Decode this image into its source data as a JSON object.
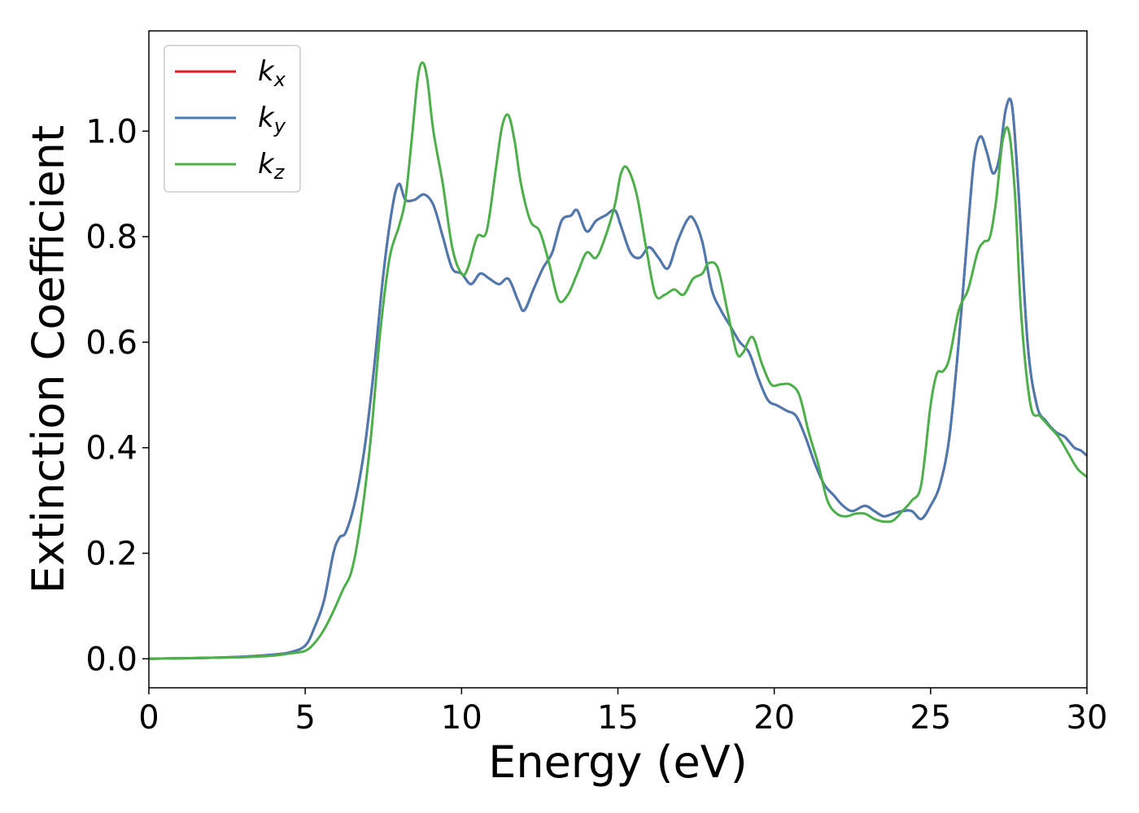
{
  "chart_data": {
    "type": "line",
    "xlabel": "Energy (eV)",
    "ylabel": "Extinction Coefficient",
    "xlim": [
      0,
      30
    ],
    "ylim": [
      -0.055,
      1.19
    ],
    "xticks": [
      0,
      5,
      10,
      15,
      20,
      25,
      30
    ],
    "yticks": [
      0.0,
      0.2,
      0.4,
      0.6,
      0.8,
      1.0
    ],
    "xtick_labels": [
      "0",
      "5",
      "10",
      "15",
      "20",
      "25",
      "30"
    ],
    "ytick_labels": [
      "0.0",
      "0.2",
      "0.4",
      "0.6",
      "0.8",
      "1.0"
    ],
    "grid": false,
    "legend_position": "top-left",
    "series": [
      {
        "name": "k",
        "subscript": "x",
        "color": "#e41a1c",
        "x": [
          0,
          1,
          2,
          3,
          4,
          4.5,
          5,
          5.3,
          5.6,
          5.9,
          6.1,
          6.3,
          6.6,
          6.9,
          7.2,
          7.5,
          7.8,
          8.0,
          8.2,
          8.5,
          8.8,
          9.1,
          9.4,
          9.7,
          10.0,
          10.3,
          10.6,
          10.9,
          11.2,
          11.5,
          11.8,
          12.0,
          12.3,
          12.6,
          12.9,
          13.2,
          13.5,
          13.7,
          14.0,
          14.3,
          14.6,
          14.9,
          15.1,
          15.4,
          15.7,
          16.0,
          16.3,
          16.6,
          16.9,
          17.2,
          17.4,
          17.7,
          18.0,
          18.3,
          18.6,
          18.9,
          19.2,
          19.5,
          19.8,
          20.1,
          20.4,
          20.7,
          21.0,
          21.3,
          21.6,
          21.9,
          22.2,
          22.5,
          22.9,
          23.2,
          23.5,
          23.8,
          24.1,
          24.4,
          24.7,
          25.0,
          25.3,
          25.6,
          25.9,
          26.2,
          26.4,
          26.6,
          26.8,
          27.0,
          27.2,
          27.4,
          27.6,
          27.8,
          28.1,
          28.4,
          28.7,
          29.0,
          29.3,
          29.6,
          29.8,
          30.0
        ],
        "y": [
          0.0,
          0.001,
          0.002,
          0.004,
          0.008,
          0.012,
          0.025,
          0.06,
          0.11,
          0.2,
          0.23,
          0.24,
          0.3,
          0.4,
          0.55,
          0.73,
          0.86,
          0.9,
          0.87,
          0.87,
          0.88,
          0.86,
          0.8,
          0.74,
          0.73,
          0.71,
          0.73,
          0.72,
          0.71,
          0.72,
          0.68,
          0.66,
          0.7,
          0.74,
          0.77,
          0.83,
          0.84,
          0.85,
          0.81,
          0.83,
          0.84,
          0.85,
          0.82,
          0.77,
          0.76,
          0.78,
          0.76,
          0.74,
          0.79,
          0.83,
          0.835,
          0.79,
          0.7,
          0.66,
          0.63,
          0.6,
          0.58,
          0.53,
          0.49,
          0.48,
          0.47,
          0.46,
          0.42,
          0.37,
          0.33,
          0.31,
          0.29,
          0.28,
          0.29,
          0.28,
          0.27,
          0.275,
          0.28,
          0.28,
          0.265,
          0.29,
          0.33,
          0.42,
          0.6,
          0.82,
          0.95,
          0.99,
          0.96,
          0.92,
          0.95,
          1.04,
          1.05,
          0.9,
          0.6,
          0.48,
          0.45,
          0.43,
          0.42,
          0.4,
          0.395,
          0.385
        ]
      },
      {
        "name": "k",
        "subscript": "y",
        "color": "#4a7ab0",
        "x": [
          0,
          1,
          2,
          3,
          4,
          4.5,
          5,
          5.3,
          5.6,
          5.9,
          6.1,
          6.3,
          6.6,
          6.9,
          7.2,
          7.5,
          7.8,
          8.0,
          8.2,
          8.5,
          8.8,
          9.1,
          9.4,
          9.7,
          10.0,
          10.3,
          10.6,
          10.9,
          11.2,
          11.5,
          11.8,
          12.0,
          12.3,
          12.6,
          12.9,
          13.2,
          13.5,
          13.7,
          14.0,
          14.3,
          14.6,
          14.9,
          15.1,
          15.4,
          15.7,
          16.0,
          16.3,
          16.6,
          16.9,
          17.2,
          17.4,
          17.7,
          18.0,
          18.3,
          18.6,
          18.9,
          19.2,
          19.5,
          19.8,
          20.1,
          20.4,
          20.7,
          21.0,
          21.3,
          21.6,
          21.9,
          22.2,
          22.5,
          22.9,
          23.2,
          23.5,
          23.8,
          24.1,
          24.4,
          24.7,
          25.0,
          25.3,
          25.6,
          25.9,
          26.2,
          26.4,
          26.6,
          26.8,
          27.0,
          27.2,
          27.4,
          27.6,
          27.8,
          28.1,
          28.4,
          28.7,
          29.0,
          29.3,
          29.6,
          29.8,
          30.0
        ],
        "y": [
          0.0,
          0.001,
          0.002,
          0.004,
          0.008,
          0.012,
          0.025,
          0.06,
          0.11,
          0.2,
          0.23,
          0.24,
          0.3,
          0.4,
          0.55,
          0.73,
          0.86,
          0.9,
          0.87,
          0.87,
          0.88,
          0.86,
          0.8,
          0.74,
          0.73,
          0.71,
          0.73,
          0.72,
          0.71,
          0.72,
          0.68,
          0.66,
          0.7,
          0.74,
          0.77,
          0.83,
          0.84,
          0.85,
          0.81,
          0.83,
          0.84,
          0.85,
          0.82,
          0.77,
          0.76,
          0.78,
          0.76,
          0.74,
          0.79,
          0.83,
          0.835,
          0.79,
          0.7,
          0.66,
          0.63,
          0.6,
          0.58,
          0.53,
          0.49,
          0.48,
          0.47,
          0.46,
          0.42,
          0.37,
          0.33,
          0.31,
          0.29,
          0.28,
          0.29,
          0.28,
          0.27,
          0.275,
          0.28,
          0.28,
          0.265,
          0.29,
          0.33,
          0.42,
          0.6,
          0.82,
          0.95,
          0.99,
          0.96,
          0.92,
          0.95,
          1.04,
          1.05,
          0.9,
          0.6,
          0.48,
          0.45,
          0.43,
          0.42,
          0.4,
          0.395,
          0.385
        ]
      },
      {
        "name": "k",
        "subscript": "z",
        "color": "#4daf4a",
        "x": [
          0,
          1,
          2,
          3,
          4,
          4.5,
          5,
          5.3,
          5.6,
          5.9,
          6.2,
          6.5,
          6.8,
          7.1,
          7.4,
          7.7,
          8.0,
          8.2,
          8.4,
          8.6,
          8.75,
          8.9,
          9.1,
          9.4,
          9.7,
          10.0,
          10.2,
          10.5,
          10.8,
          11.1,
          11.3,
          11.5,
          11.7,
          11.9,
          12.2,
          12.5,
          12.8,
          13.1,
          13.4,
          13.7,
          14.0,
          14.3,
          14.6,
          14.9,
          15.1,
          15.3,
          15.6,
          15.9,
          16.2,
          16.5,
          16.8,
          17.1,
          17.4,
          17.7,
          17.9,
          18.2,
          18.5,
          18.8,
          19.0,
          19.3,
          19.6,
          19.9,
          20.2,
          20.5,
          20.8,
          21.1,
          21.4,
          21.7,
          22.0,
          22.3,
          22.6,
          22.9,
          23.2,
          23.5,
          23.8,
          24.1,
          24.4,
          24.7,
          25.0,
          25.2,
          25.4,
          25.6,
          25.9,
          26.2,
          26.5,
          26.7,
          26.9,
          27.1,
          27.3,
          27.5,
          27.7,
          27.9,
          28.2,
          28.5,
          28.8,
          29.1,
          29.4,
          29.7,
          30.0
        ],
        "y": [
          0.0,
          0.001,
          0.002,
          0.003,
          0.006,
          0.01,
          0.015,
          0.03,
          0.055,
          0.09,
          0.13,
          0.17,
          0.27,
          0.42,
          0.62,
          0.76,
          0.82,
          0.87,
          0.98,
          1.1,
          1.13,
          1.1,
          1.0,
          0.9,
          0.78,
          0.73,
          0.74,
          0.8,
          0.81,
          0.93,
          1.01,
          1.03,
          0.98,
          0.9,
          0.83,
          0.81,
          0.75,
          0.68,
          0.69,
          0.73,
          0.77,
          0.76,
          0.8,
          0.86,
          0.92,
          0.93,
          0.88,
          0.78,
          0.69,
          0.69,
          0.7,
          0.69,
          0.72,
          0.73,
          0.75,
          0.74,
          0.66,
          0.58,
          0.58,
          0.61,
          0.56,
          0.52,
          0.52,
          0.52,
          0.5,
          0.43,
          0.37,
          0.3,
          0.275,
          0.27,
          0.275,
          0.275,
          0.265,
          0.26,
          0.262,
          0.28,
          0.3,
          0.33,
          0.48,
          0.54,
          0.545,
          0.57,
          0.66,
          0.7,
          0.77,
          0.79,
          0.8,
          0.87,
          0.98,
          1.0,
          0.88,
          0.65,
          0.48,
          0.46,
          0.44,
          0.42,
          0.39,
          0.36,
          0.345
        ]
      }
    ]
  }
}
